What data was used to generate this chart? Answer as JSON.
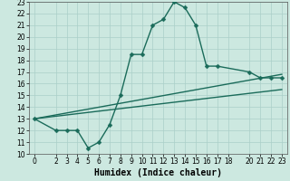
{
  "xlabel": "Humidex (Indice chaleur)",
  "bg_color": "#cce8e0",
  "grid_color": "#aacfc8",
  "line_color": "#1a6b5a",
  "xlim": [
    -0.5,
    23.5
  ],
  "ylim": [
    10,
    23
  ],
  "xticks": [
    0,
    2,
    3,
    4,
    5,
    6,
    7,
    8,
    9,
    10,
    11,
    12,
    13,
    14,
    15,
    16,
    17,
    18,
    20,
    21,
    22,
    23
  ],
  "yticks": [
    10,
    11,
    12,
    13,
    14,
    15,
    16,
    17,
    18,
    19,
    20,
    21,
    22,
    23
  ],
  "curve_x": [
    0,
    2,
    3,
    4,
    5,
    6,
    7,
    8,
    9,
    10,
    11,
    12,
    13,
    14,
    15,
    16,
    17,
    20,
    21,
    22,
    23
  ],
  "curve_y": [
    13,
    12,
    12,
    12,
    10.5,
    11,
    12.5,
    15,
    18.5,
    18.5,
    21,
    21.5,
    23,
    22.5,
    21,
    17.5,
    17.5,
    17,
    16.5,
    16.5,
    16.5
  ],
  "line1_x": [
    0,
    23
  ],
  "line1_y": [
    13,
    16.8
  ],
  "line2_x": [
    0,
    23
  ],
  "line2_y": [
    13,
    15.5
  ],
  "font_size_label": 7,
  "font_size_tick": 5.5,
  "marker_size": 2.5,
  "line_width": 1.0
}
